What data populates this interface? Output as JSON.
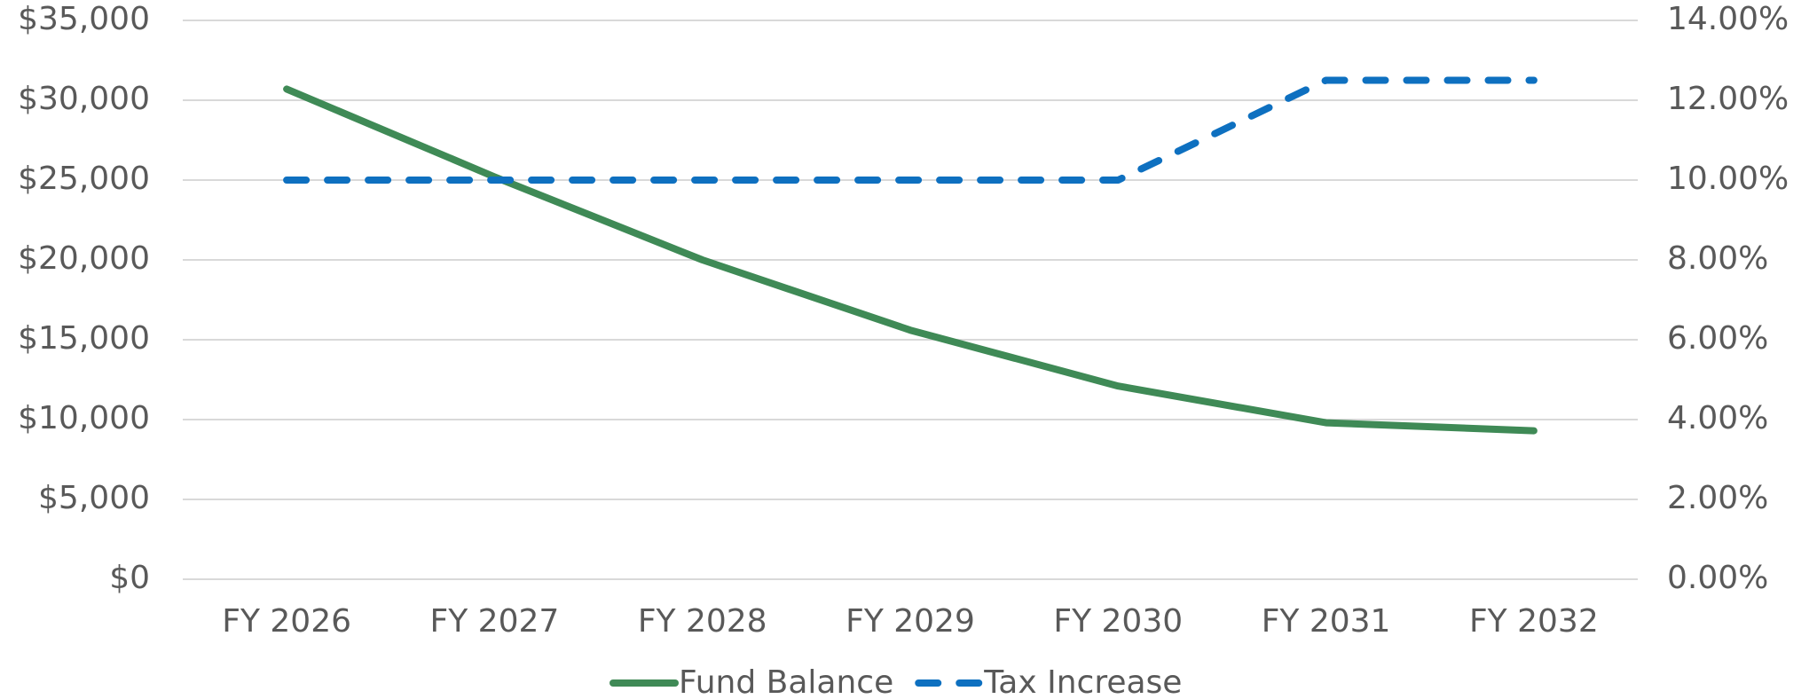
{
  "chart_data": {
    "type": "line",
    "categories": [
      "FY 2026",
      "FY 2027",
      "FY 2028",
      "FY 2029",
      "FY 2030",
      "FY 2031",
      "FY 2032"
    ],
    "series": [
      {
        "name": "Fund Balance",
        "color": "#3f8a56",
        "values": [
          30700,
          25200,
          20000,
          15600,
          12100,
          9800,
          9300
        ]
      },
      {
        "name": "Tax Increase",
        "color": "#0e70c0",
        "axis": "y2",
        "dash": true,
        "values": [
          10,
          10,
          10,
          10,
          10,
          12.5,
          12.5
        ]
      }
    ],
    "ylim": [
      0,
      35000
    ],
    "yticks": [
      {
        "value": 0,
        "label": "$0"
      },
      {
        "value": 5000,
        "label": "$5,000"
      },
      {
        "value": 10000,
        "label": "$10,000"
      },
      {
        "value": 15000,
        "label": "$15,000"
      },
      {
        "value": 20000,
        "label": "$20,000"
      },
      {
        "value": 25000,
        "label": "$25,000"
      },
      {
        "value": 30000,
        "label": "$30,000"
      },
      {
        "value": 35000,
        "label": "$35,000"
      }
    ],
    "y2lim": [
      0,
      14
    ],
    "y2ticks": [
      {
        "value": 0,
        "label": "0.00%"
      },
      {
        "value": 2,
        "label": "2.00%"
      },
      {
        "value": 4,
        "label": "4.00%"
      },
      {
        "value": 6,
        "label": "6.00%"
      },
      {
        "value": 8,
        "label": "8.00%"
      },
      {
        "value": 10,
        "label": "10.00%"
      },
      {
        "value": 12,
        "label": "12.00%"
      },
      {
        "value": 14,
        "label": "14.00%"
      }
    ],
    "grid": true,
    "legend": "bottom"
  }
}
